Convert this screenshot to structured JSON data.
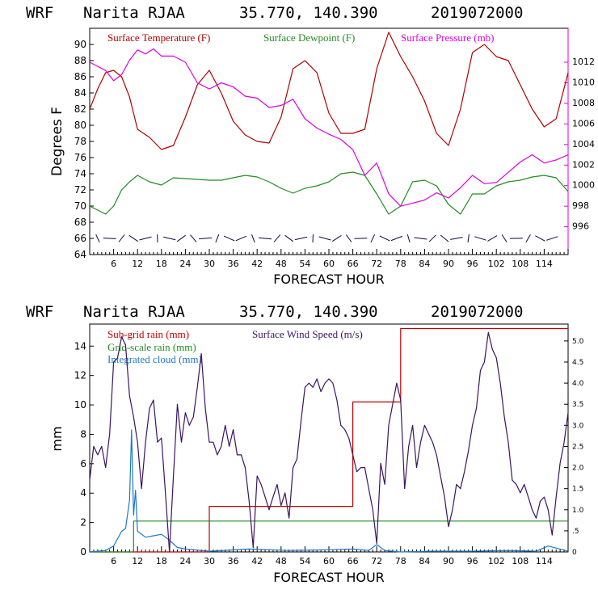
{
  "colors": {
    "temperature": "#b00000",
    "dewpoint": "#228b22",
    "pressure": "#dd00dd",
    "subgrid_rain": "#c00000",
    "gridscale_rain": "#228b22",
    "cloud": "#1e78c8",
    "wind": "#3a1460",
    "barbs": "#1a0040"
  },
  "chart_data": [
    {
      "type": "line",
      "header": {
        "model": "WRF",
        "station": "Narita RJAA",
        "coords": "35.770, 140.390",
        "init": "2019072000"
      },
      "title": "WRF Narita RJAA 35.770, 140.390 2019072000",
      "xlabel": "FORECAST HOUR",
      "ylabel": "Degrees F",
      "xlim": [
        0,
        120
      ],
      "xticks": [
        "6",
        "12",
        "18",
        "24",
        "30",
        "36",
        "42",
        "48",
        "54",
        "60",
        "66",
        "72",
        "78",
        "84",
        "90",
        "96",
        "102",
        "108",
        "114"
      ],
      "ylim": [
        64,
        92
      ],
      "yticks": [
        "64",
        "66",
        "68",
        "70",
        "72",
        "74",
        "76",
        "78",
        "80",
        "82",
        "84",
        "86",
        "88",
        "90"
      ],
      "y2lim": [
        993.3,
        1015.3
      ],
      "y2label": "Surface Pressure (mb)",
      "y2ticks": [
        "996",
        "998",
        "1000",
        "1002",
        "1004",
        "1006",
        "1008",
        "1010",
        "1012"
      ],
      "legend": [
        "Surface Temperature (F)",
        "Surface Dewpoint (F)",
        "Surface Pressure (mb)"
      ],
      "series": [
        {
          "name": "Surface Temperature (F)",
          "axis": "left",
          "x": [
            0,
            2,
            4,
            6,
            8,
            10,
            12,
            15,
            18,
            21,
            24,
            27,
            30,
            33,
            36,
            39,
            42,
            45,
            48,
            51,
            54,
            57,
            60,
            63,
            66,
            69,
            72,
            75,
            78,
            81,
            84,
            87,
            90,
            93,
            96,
            99,
            102,
            105,
            108,
            111,
            114,
            117,
            120
          ],
          "y": [
            82,
            84.5,
            86.5,
            86.8,
            86,
            83.5,
            79.5,
            78.5,
            77,
            77.5,
            81,
            85,
            86.8,
            84,
            80.5,
            78.8,
            78,
            77.8,
            81,
            87,
            88,
            86.5,
            81.5,
            79,
            79,
            79.5,
            87,
            91.5,
            88.5,
            86,
            83,
            79,
            77.5,
            82,
            89,
            90,
            88.5,
            88,
            85,
            82,
            79.8,
            80.8,
            86.5
          ]
        },
        {
          "name": "Surface Dewpoint (F)",
          "axis": "left",
          "x": [
            0,
            2,
            4,
            6,
            8,
            10,
            12,
            15,
            18,
            21,
            24,
            27,
            30,
            33,
            36,
            39,
            42,
            45,
            48,
            51,
            54,
            57,
            60,
            63,
            66,
            69,
            72,
            75,
            78,
            81,
            84,
            87,
            90,
            93,
            96,
            99,
            102,
            105,
            108,
            111,
            114,
            117,
            120
          ],
          "y": [
            70,
            69.5,
            69,
            70,
            72,
            73,
            73.8,
            73,
            72.6,
            73.5,
            73.4,
            73.3,
            73.2,
            73.2,
            73.5,
            73.8,
            73.6,
            73,
            72.2,
            71.6,
            72.2,
            72.5,
            73,
            74,
            74.2,
            73.8,
            71.5,
            69,
            70,
            73,
            73.2,
            72.5,
            70.2,
            69,
            71.5,
            71.5,
            72.5,
            73,
            73.2,
            73.6,
            73.8,
            73.5,
            71.8
          ]
        },
        {
          "name": "Surface Pressure (mb)",
          "axis": "right",
          "x": [
            0,
            2,
            4,
            6,
            8,
            10,
            12,
            14,
            16,
            18,
            21,
            24,
            27,
            30,
            33,
            36,
            39,
            42,
            45,
            48,
            51,
            54,
            57,
            60,
            63,
            66,
            69,
            72,
            75,
            78,
            81,
            84,
            87,
            90,
            93,
            96,
            99,
            102,
            105,
            108,
            111,
            114,
            117,
            120
          ],
          "y": [
            1012,
            1011.6,
            1011.2,
            1010.2,
            1010.8,
            1012.2,
            1013.2,
            1012.8,
            1013.3,
            1012.6,
            1012.6,
            1012,
            1010,
            1009.4,
            1010,
            1009.6,
            1008.7,
            1008.5,
            1007.6,
            1007.8,
            1008.4,
            1006.5,
            1005.6,
            1005,
            1004.5,
            1003.5,
            1001,
            1002.2,
            999.2,
            998,
            998.3,
            998.6,
            999.3,
            998.8,
            999.8,
            1001,
            1000.2,
            1000.3,
            1001.3,
            1002.3,
            1003,
            1002.2,
            1002.5,
            1003
          ]
        }
      ],
      "wind_barbs_row_value": 66
    },
    {
      "type": "line",
      "header": {
        "model": "WRF",
        "station": "Narita RJAA",
        "coords": "35.770, 140.390",
        "init": "2019072000"
      },
      "title": "WRF Narita RJAA 35.770, 140.390 2019072000",
      "xlabel": "FORECAST HOUR",
      "ylabel": "mm",
      "xlim": [
        0,
        120
      ],
      "xticks": [
        "6",
        "12",
        "18",
        "24",
        "30",
        "36",
        "42",
        "48",
        "54",
        "60",
        "66",
        "72",
        "78",
        "84",
        "90",
        "96",
        "102",
        "108",
        "114"
      ],
      "ylim": [
        0,
        15.5
      ],
      "yticks": [
        "0",
        "2",
        "4",
        "6",
        "8",
        "10",
        "12",
        "14"
      ],
      "y2lim": [
        0,
        5.4
      ],
      "y2label": "Surface Wind Speed (m/s)",
      "y2ticks": [
        "0",
        ".5",
        "1.0",
        "1.5",
        "2.0",
        "2.5",
        "3.0",
        "3.5",
        "4.0",
        "4.5",
        "5.0"
      ],
      "legend": [
        "Sub-grid rain (mm)",
        "Grid-scale rain (mm)",
        "Integrated cloud (mm)",
        "Surface Wind Speed (m/s)"
      ],
      "series": [
        {
          "name": "Sub-grid rain (mm)",
          "axis": "left",
          "step": true,
          "x": [
            0,
            30,
            30,
            66,
            66,
            78,
            78,
            120
          ],
          "y": [
            0,
            0,
            3.1,
            3.1,
            10.2,
            10.2,
            15.2,
            15.2
          ]
        },
        {
          "name": "Grid-scale rain (mm)",
          "axis": "left",
          "step": true,
          "x": [
            0,
            11,
            11,
            120
          ],
          "y": [
            0,
            0,
            2.1,
            2.1
          ]
        },
        {
          "name": "Integrated cloud (mm)",
          "axis": "left",
          "x": [
            0,
            4,
            6,
            8,
            9,
            10,
            10.5,
            11,
            11.5,
            12,
            14,
            16,
            18,
            20,
            22,
            24,
            30,
            40,
            50,
            60,
            66,
            70,
            72,
            74,
            76,
            78,
            85,
            95,
            105,
            112,
            115,
            120
          ],
          "y": [
            0,
            0.1,
            0.4,
            1.4,
            1.6,
            3.5,
            8.3,
            2.5,
            4.2,
            1.4,
            1,
            1.1,
            1.2,
            0.8,
            0.3,
            0.2,
            0.05,
            0.2,
            0.1,
            0.15,
            0.2,
            0.1,
            0.5,
            0.1,
            0.05,
            0,
            0.05,
            0.05,
            0.1,
            0.05,
            0.4,
            0.05
          ]
        },
        {
          "name": "Surface Wind Speed (m/s)",
          "axis": "right",
          "x": [
            0,
            1,
            2,
            3,
            4,
            5,
            6,
            7,
            8,
            9,
            10,
            11,
            12,
            13,
            14,
            15,
            16,
            17,
            18,
            19,
            20,
            21,
            22,
            23,
            24,
            25,
            26,
            27,
            28,
            29,
            30,
            31,
            32,
            33,
            34,
            35,
            36,
            37,
            38,
            39,
            40,
            41,
            42,
            43,
            44,
            45,
            46,
            47,
            48,
            49,
            50,
            51,
            52,
            53,
            54,
            55,
            56,
            57,
            58,
            59,
            60,
            61,
            62,
            63,
            64,
            65,
            66,
            67,
            68,
            69,
            70,
            71,
            72,
            73,
            74,
            75,
            76,
            77,
            78,
            79,
            80,
            81,
            82,
            83,
            84,
            85,
            86,
            87,
            88,
            89,
            90,
            91,
            92,
            93,
            94,
            95,
            96,
            97,
            98,
            99,
            100,
            101,
            102,
            103,
            104,
            105,
            106,
            107,
            108,
            109,
            110,
            111,
            112,
            113,
            114,
            115,
            116,
            117,
            118,
            119,
            120
          ],
          "y": [
            1.7,
            2.5,
            2.3,
            2.5,
            2.0,
            2.8,
            4.5,
            4.6,
            5.1,
            4.9,
            3.7,
            3.2,
            2.6,
            1.5,
            2.6,
            3.4,
            3.6,
            2.6,
            2.7,
            1.4,
            0.0,
            1.8,
            3.5,
            2.6,
            3.3,
            3.0,
            3.2,
            3.9,
            4.7,
            3.4,
            2.6,
            2.6,
            2.3,
            2.5,
            3.0,
            2.5,
            2.9,
            2.3,
            2.3,
            2.0,
            1.2,
            0.1,
            1.8,
            1.6,
            1.3,
            1.0,
            1.3,
            1.6,
            1.1,
            1.4,
            0.8,
            2.0,
            2.2,
            3.1,
            3.9,
            4.0,
            3.9,
            4.1,
            3.8,
            4.0,
            4.1,
            4.0,
            3.6,
            3.0,
            2.9,
            2.7,
            2.3,
            1.9,
            2.0,
            2.0,
            1.5,
            1.0,
            0.2,
            2.1,
            1.6,
            3.0,
            3.5,
            4.0,
            3.6,
            1.5,
            2.5,
            3.0,
            2.0,
            2.6,
            3.0,
            2.8,
            2.6,
            2.3,
            1.8,
            1.3,
            0.6,
            1.0,
            1.6,
            1.5,
            1.9,
            2.4,
            3.0,
            3.4,
            4.3,
            4.5,
            5.2,
            4.8,
            4.6,
            4.0,
            3.2,
            2.6,
            1.7,
            1.6,
            1.4,
            1.6,
            1.3,
            1.0,
            0.8,
            1.2,
            1.3,
            1.0,
            0.4,
            1.3,
            2.1,
            2.6,
            3.3
          ]
        }
      ]
    }
  ]
}
